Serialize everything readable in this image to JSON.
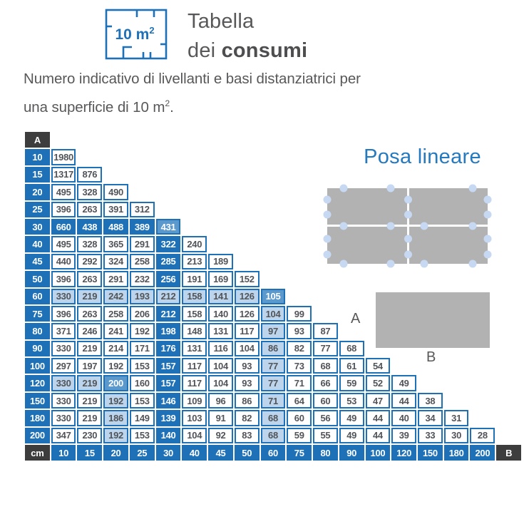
{
  "header": {
    "icon_label": "10 m",
    "icon_sup": "2",
    "title_line1": "Tabella",
    "title_line2_normal": "dei ",
    "title_line2_bold": "consumi"
  },
  "subtitle": {
    "line1": "Numero indicativo di livellanti e basi distanziatrici per",
    "line2_pre": "una superficie di 10 m",
    "line2_sup": "2",
    "line2_post": "."
  },
  "right_panel": {
    "heading": "Posa lineare",
    "tile_label_a": "A",
    "tile_label_b": "B"
  },
  "table": {
    "corner_top_label": "A",
    "corner_bottom_left_label": "cm",
    "corner_bottom_right_label": "B",
    "column_headers": [
      "10",
      "15",
      "20",
      "25",
      "30",
      "40",
      "45",
      "50",
      "60",
      "75",
      "80",
      "90",
      "100",
      "120",
      "150",
      "180",
      "200"
    ],
    "rows": [
      {
        "label": "10",
        "values": [
          1980
        ],
        "styles": [
          ""
        ]
      },
      {
        "label": "15",
        "values": [
          1317,
          876
        ],
        "styles": [
          "",
          ""
        ]
      },
      {
        "label": "20",
        "values": [
          495,
          328,
          490
        ],
        "styles": [
          "",
          "",
          ""
        ]
      },
      {
        "label": "25",
        "values": [
          396,
          263,
          391,
          312
        ],
        "styles": [
          "",
          "",
          "",
          ""
        ]
      },
      {
        "label": "30",
        "values": [
          660,
          438,
          488,
          389,
          431
        ],
        "styles": [
          "d",
          "d",
          "d",
          "d",
          "m"
        ]
      },
      {
        "label": "40",
        "values": [
          495,
          328,
          365,
          291,
          322,
          240
        ],
        "styles": [
          "",
          "",
          "",
          "",
          "d",
          ""
        ]
      },
      {
        "label": "45",
        "values": [
          440,
          292,
          324,
          258,
          285,
          213,
          189
        ],
        "styles": [
          "",
          "",
          "",
          "",
          "d",
          "",
          ""
        ]
      },
      {
        "label": "50",
        "values": [
          396,
          263,
          291,
          232,
          256,
          191,
          169,
          152
        ],
        "styles": [
          "",
          "",
          "",
          "",
          "d",
          "",
          "",
          ""
        ]
      },
      {
        "label": "60",
        "values": [
          330,
          219,
          242,
          193,
          212,
          158,
          141,
          126,
          105
        ],
        "styles": [
          "l",
          "l",
          "l",
          "l",
          "l",
          "l",
          "l",
          "l",
          "m"
        ]
      },
      {
        "label": "75",
        "values": [
          396,
          263,
          258,
          206,
          212,
          158,
          140,
          126,
          104,
          99
        ],
        "styles": [
          "",
          "",
          "",
          "",
          "d",
          "",
          "",
          "",
          "l",
          ""
        ]
      },
      {
        "label": "80",
        "values": [
          371,
          246,
          241,
          192,
          198,
          148,
          131,
          117,
          97,
          93,
          87
        ],
        "styles": [
          "",
          "",
          "",
          "",
          "d",
          "",
          "",
          "",
          "l",
          "",
          ""
        ]
      },
      {
        "label": "90",
        "values": [
          330,
          219,
          214,
          171,
          176,
          131,
          116,
          104,
          86,
          82,
          77,
          68
        ],
        "styles": [
          "",
          "",
          "",
          "",
          "d",
          "",
          "",
          "",
          "l",
          "",
          "",
          ""
        ]
      },
      {
        "label": "100",
        "values": [
          297,
          197,
          192,
          153,
          157,
          117,
          104,
          93,
          77,
          73,
          68,
          61,
          54
        ],
        "styles": [
          "",
          "",
          "",
          "",
          "d",
          "",
          "",
          "",
          "l",
          "",
          "",
          "",
          ""
        ]
      },
      {
        "label": "120",
        "values": [
          330,
          219,
          200,
          160,
          157,
          117,
          104,
          93,
          77,
          71,
          66,
          59,
          52,
          49
        ],
        "styles": [
          "l",
          "l",
          "m",
          "",
          "d",
          "",
          "",
          "",
          "l",
          "",
          "",
          "",
          "",
          ""
        ]
      },
      {
        "label": "150",
        "values": [
          330,
          219,
          192,
          153,
          146,
          109,
          96,
          86,
          71,
          64,
          60,
          53,
          47,
          44,
          38
        ],
        "styles": [
          "",
          "",
          "l",
          "",
          "d",
          "",
          "",
          "",
          "l",
          "",
          "",
          "",
          "",
          "",
          ""
        ]
      },
      {
        "label": "180",
        "values": [
          330,
          219,
          186,
          149,
          139,
          103,
          91,
          82,
          68,
          60,
          56,
          49,
          44,
          40,
          34,
          31
        ],
        "styles": [
          "",
          "",
          "l",
          "",
          "d",
          "",
          "",
          "",
          "l",
          "",
          "",
          "",
          "",
          "",
          "",
          ""
        ]
      },
      {
        "label": "200",
        "values": [
          347,
          230,
          192,
          153,
          140,
          104,
          92,
          83,
          68,
          59,
          55,
          49,
          44,
          39,
          33,
          30,
          28
        ],
        "styles": [
          "",
          "",
          "l",
          "",
          "d",
          "",
          "",
          "",
          "l",
          "",
          "",
          "",
          "",
          "",
          "",
          "",
          ""
        ]
      }
    ]
  },
  "colors": {
    "primary_blue": "#1e71b6",
    "light_blue": "#bcd5ec",
    "medium_blue": "#5b99cc",
    "heading_blue": "#2579be",
    "dark_gray": "#3d3d3d",
    "text_gray": "#515459",
    "title_gray": "#58585a",
    "tile_gray": "#b2b2b2",
    "dot_blue": "#c6d8f2"
  }
}
